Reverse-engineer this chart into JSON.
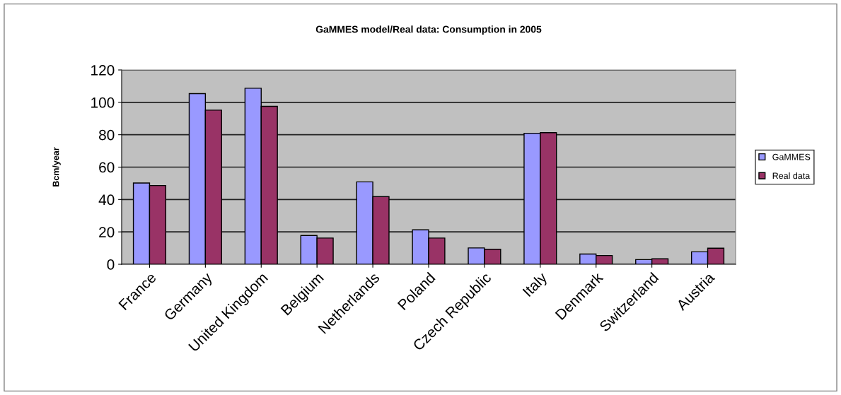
{
  "chart_data": {
    "type": "bar",
    "title": "GaMMES model/Real data: Consumption in 2005",
    "ylabel": "Bcm/year",
    "categories": [
      "France",
      "Germany",
      "United Kingdom",
      "Belgium",
      "Netherlands",
      "Poland",
      "Czech Republic",
      "Italy",
      "Denmark",
      "Switzerland",
      "Austria"
    ],
    "series": [
      {
        "name": "GaMMES",
        "color": "#9999ff",
        "values": [
          50.2,
          105.4,
          108.7,
          17.8,
          50.9,
          21.3,
          10.1,
          80.9,
          6.3,
          2.9,
          7.7
        ]
      },
      {
        "name": "Real data",
        "color": "#993366",
        "values": [
          48.6,
          95.2,
          97.5,
          16.2,
          41.8,
          16.2,
          9.3,
          81.3,
          5.4,
          3.4,
          9.9
        ]
      }
    ],
    "ylim": [
      0,
      120
    ],
    "yticks": [
      0,
      20,
      40,
      60,
      80,
      100,
      120
    ],
    "grid": "y",
    "legend": "right"
  }
}
